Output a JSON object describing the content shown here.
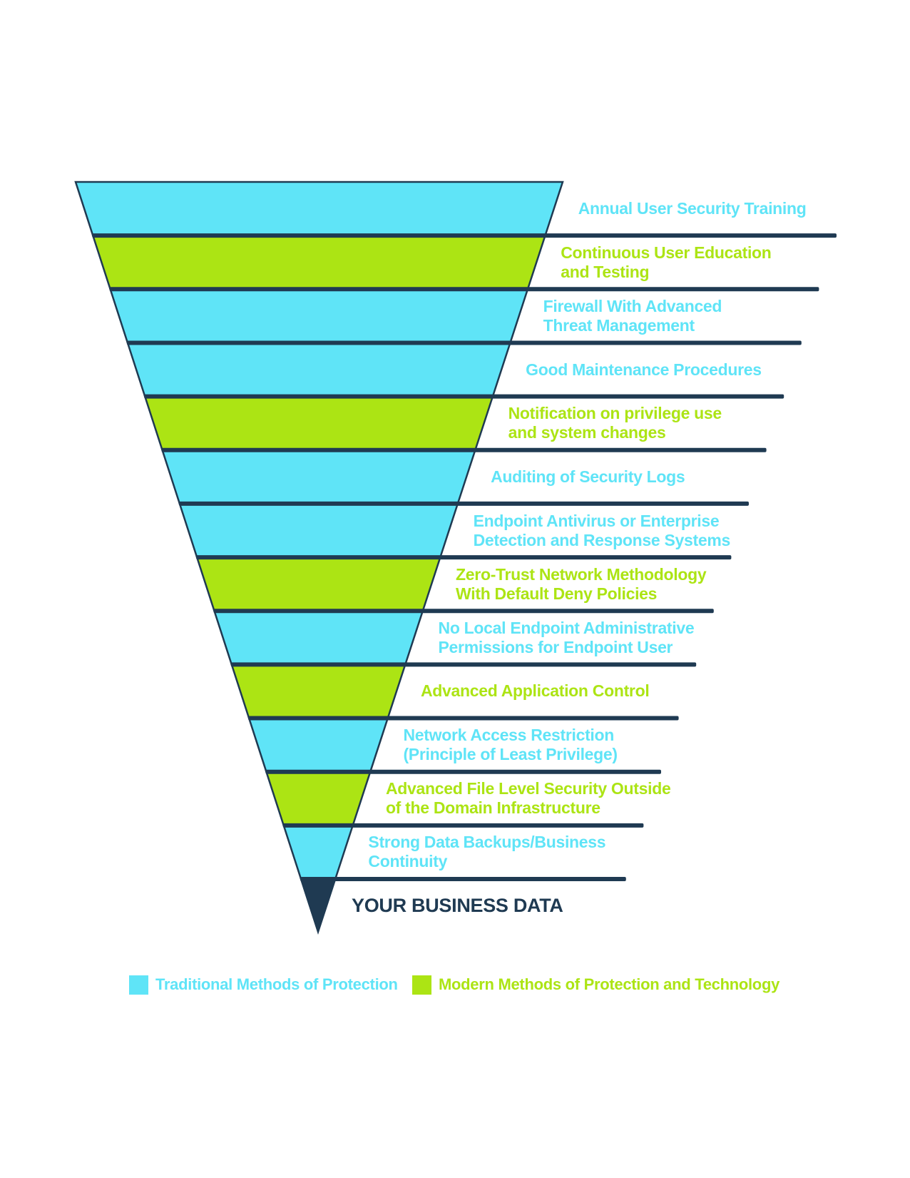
{
  "colors": {
    "traditional": "#5FE4F7",
    "modern": "#ACE414",
    "dark": "#1F3A52"
  },
  "funnel": {
    "layers": [
      {
        "method": "traditional",
        "label_lines": [
          "Annual User Security Training"
        ]
      },
      {
        "method": "modern",
        "label_lines": [
          "Continuous User Education",
          "and Testing"
        ]
      },
      {
        "method": "traditional",
        "label_lines": [
          "Firewall With Advanced",
          "Threat Management"
        ]
      },
      {
        "method": "traditional",
        "label_lines": [
          "Good Maintenance Procedures"
        ]
      },
      {
        "method": "modern",
        "label_lines": [
          "Notification on privilege use",
          "and system changes"
        ]
      },
      {
        "method": "traditional",
        "label_lines": [
          "Auditing of Security Logs"
        ]
      },
      {
        "method": "traditional",
        "label_lines": [
          "Endpoint Antivirus or Enterprise",
          "Detection and Response Systems"
        ]
      },
      {
        "method": "modern",
        "label_lines": [
          "Zero-Trust Network Methodology",
          "With Default Deny Policies"
        ]
      },
      {
        "method": "traditional",
        "label_lines": [
          "No Local Endpoint Administrative",
          "Permissions for Endpoint User"
        ]
      },
      {
        "method": "modern",
        "label_lines": [
          "Advanced Application Control"
        ]
      },
      {
        "method": "traditional",
        "label_lines": [
          "Network Access Restriction",
          "(Principle of Least Privilege)"
        ]
      },
      {
        "method": "modern",
        "label_lines": [
          "Advanced File Level Security Outside",
          "of the Domain Infrastructure"
        ]
      },
      {
        "method": "traditional",
        "label_lines": [
          "Strong Data Backups/Business",
          "Continuity"
        ]
      }
    ],
    "tip_label": "YOUR BUSINESS DATA"
  },
  "legend": {
    "items": [
      {
        "method": "traditional",
        "label": "Traditional Methods of Protection"
      },
      {
        "method": "modern",
        "label": "Modern Methods of Protection and Technology"
      }
    ]
  }
}
